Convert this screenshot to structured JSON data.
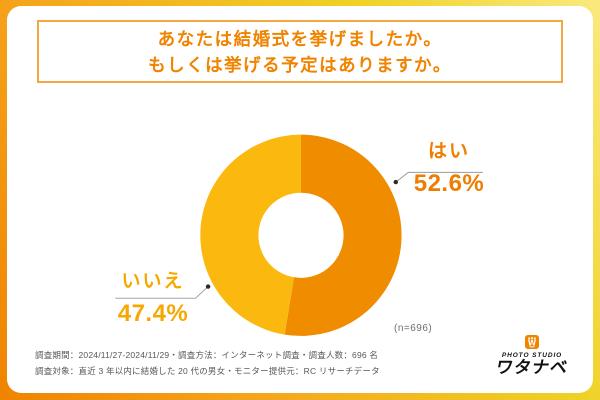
{
  "title": {
    "line1": "あなたは結婚式を挙げましたか。",
    "line2": "もしくは挙げる予定はありますか。"
  },
  "chart_data": {
    "type": "pie",
    "donut": true,
    "title": "あなたは結婚式を挙げましたか。もしくは挙げる予定はありますか。",
    "categories": [
      "はい",
      "いいえ"
    ],
    "values": [
      52.6,
      47.4
    ],
    "value_labels": [
      "52.6%",
      "47.4%"
    ],
    "unit": "%",
    "n": 696,
    "sample_label": "(n=696)",
    "colors": [
      "#F08C00",
      "#FBB80E"
    ],
    "label_colors": [
      "#EE7D00",
      "#F6A800"
    ],
    "start_angle": "top",
    "direction": "clockwise",
    "inner_radius_ratio": 0.42,
    "legend": "none"
  },
  "footnote": {
    "line1": "調査期間：2024/11/27-2024/11/29・調査方法：インターネット調査・調査人数：696 名",
    "line2": "調査対象：直近 3 年以内に結婚した 20 代の男女・モニター提供元：RC リサーチデータ"
  },
  "logo": {
    "mark_letter": "W",
    "studio": "PHOTO STUDIO",
    "name": "ワタナベ"
  },
  "palette": {
    "background_gradient_start": "#F08300",
    "background_gradient_end": "#FAE97E",
    "card": "#FFFFFF",
    "title_text": "#F08300",
    "title_border": "#F4A640",
    "leader_line": "#999999",
    "connector_dot": "#2B2B2B",
    "footnote_text": "#595757",
    "sample_text": "#6E6E6E",
    "logo_black": "#111111",
    "logo_orange": "#F08300"
  }
}
